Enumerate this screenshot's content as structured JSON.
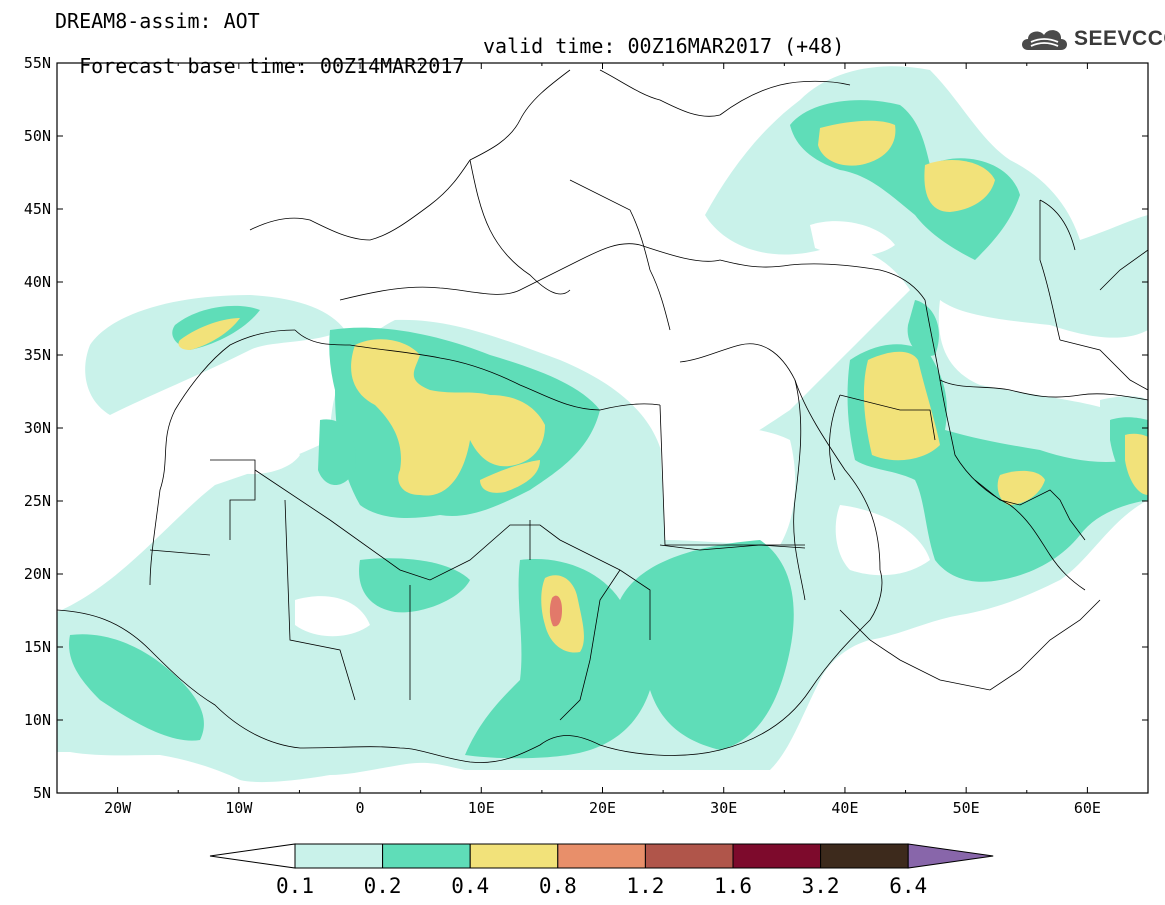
{
  "header": {
    "line1": "DREAM8-assim: AOT",
    "line2_base": "Forecast base time: 00Z14MAR2017",
    "line2_valid": "valid time: 00Z16MAR2017 (+48)",
    "logo_text": "SEEVCCC",
    "logo_icon": "cloud-icon"
  },
  "map": {
    "lat_labels": [
      "55N",
      "50N",
      "45N",
      "40N",
      "35N",
      "30N",
      "25N",
      "20N",
      "15N",
      "10N",
      "5N"
    ],
    "lon_labels": [
      "20W",
      "10W",
      "0",
      "10E",
      "20E",
      "30E",
      "40E",
      "50E",
      "60E"
    ],
    "lat_range": [
      5,
      55
    ],
    "lon_range": [
      -25,
      65
    ]
  },
  "colorbar": {
    "labels": [
      "0.1",
      "0.2",
      "0.4",
      "0.8",
      "1.2",
      "1.6",
      "3.2",
      "6.4"
    ],
    "colors": [
      "#ffffff",
      "#c9f2ea",
      "#5fddb8",
      "#f2e27a",
      "#e88f6a",
      "#b0554a",
      "#7d0a2c",
      "#3d2a1c",
      "#8866aa"
    ]
  },
  "regions": {
    "colors": {
      "c1": "#c9f2ea",
      "c2": "#5fddb8",
      "c3": "#f2e27a",
      "c4": "#e2796a"
    }
  }
}
